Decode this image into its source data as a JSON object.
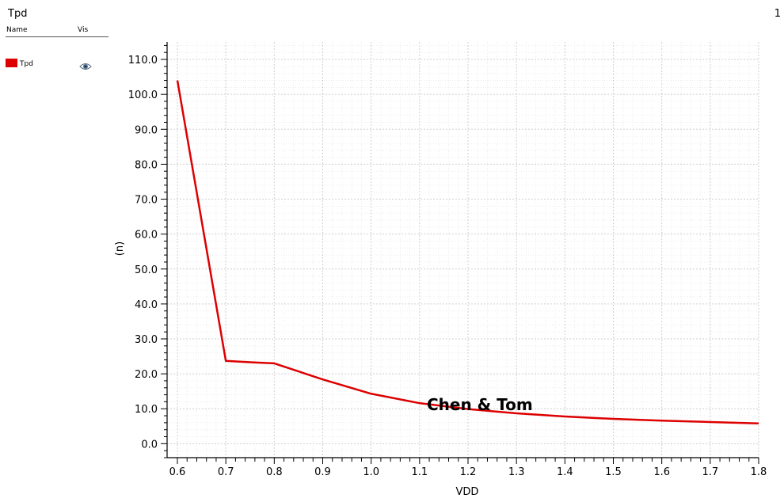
{
  "panel": {
    "title": "Tpd",
    "page_number": "1"
  },
  "legend": {
    "name_header": "Name",
    "vis_header": "Vis",
    "items": [
      {
        "label": "Tpd",
        "color": "#dd0000",
        "visible_icon": "eye-icon"
      }
    ]
  },
  "watermark": "Chen & Tom",
  "chart_data": {
    "type": "line",
    "xlabel": "VDD",
    "ylabel": "(n)",
    "xlim": [
      0.6,
      1.8
    ],
    "ylim": [
      -4,
      115
    ],
    "x_ticks": [
      "0.6",
      "0.7",
      "0.8",
      "0.9",
      "1.0",
      "1.1",
      "1.2",
      "1.3",
      "1.4",
      "1.5",
      "1.6",
      "1.7",
      "1.8"
    ],
    "y_ticks": [
      "0.0",
      "10.0",
      "20.0",
      "30.0",
      "40.0",
      "50.0",
      "60.0",
      "70.0",
      "80.0",
      "90.0",
      "100.0",
      "110.0"
    ],
    "grid": true,
    "series": [
      {
        "name": "Tpd",
        "color": "#dd0000",
        "x": [
          0.6,
          0.7,
          0.75,
          0.8,
          0.9,
          1.0,
          1.1,
          1.2,
          1.3,
          1.4,
          1.5,
          1.6,
          1.7,
          1.8
        ],
        "y": [
          104,
          23.7,
          23.3,
          23.0,
          18.4,
          14.3,
          11.6,
          9.9,
          8.7,
          7.8,
          7.1,
          6.6,
          6.2,
          5.8
        ]
      }
    ]
  }
}
